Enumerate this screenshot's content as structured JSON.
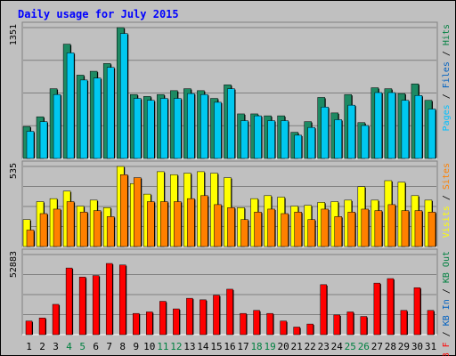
{
  "chart_data": {
    "title": "Daily usage for July 2015",
    "type": "bar",
    "days": [
      "1",
      "2",
      "3",
      "4",
      "5",
      "6",
      "7",
      "8",
      "9",
      "10",
      "11",
      "12",
      "13",
      "14",
      "15",
      "16",
      "17",
      "18",
      "19",
      "20",
      "21",
      "22",
      "23",
      "24",
      "25",
      "26",
      "27",
      "28",
      "29",
      "30",
      "31"
    ],
    "weekend_days": [
      "4",
      "5",
      "11",
      "12",
      "18",
      "19",
      "25",
      "26"
    ],
    "panels": [
      {
        "id": "hits",
        "max_label": "1351",
        "ymax": 1351,
        "legend": [
          {
            "text": "Pages",
            "color": "#00c0ff"
          },
          {
            "text": " / ",
            "color": "#000000"
          },
          {
            "text": "Files",
            "color": "#0060c0"
          },
          {
            "text": " / ",
            "color": "#000000"
          },
          {
            "text": "Hits",
            "color": "#008040"
          }
        ],
        "series": [
          {
            "name": "Hits",
            "color": "#1d8a63",
            "values": [
              330,
              430,
              720,
              1180,
              860,
              900,
              980,
              1351,
              660,
              640,
              660,
              700,
              720,
              700,
              620,
              760,
              460,
              460,
              440,
              440,
              270,
              380,
              630,
              470,
              660,
              370,
              730,
              720,
              670,
              770,
              600
            ]
          },
          {
            "name": "Pages",
            "color": "#00c8f0",
            "values": [
              280,
              380,
              660,
              1090,
              810,
              830,
              940,
              1290,
              620,
              600,
              620,
              620,
              670,
              660,
              580,
              720,
              390,
              440,
              390,
              390,
              240,
              320,
              530,
              400,
              550,
              340,
              680,
              680,
              600,
              650,
              510
            ]
          }
        ]
      },
      {
        "id": "visits",
        "max_label": "535",
        "ymax": 535,
        "legend": [
          {
            "text": "Visits",
            "color": "#ffff00"
          },
          {
            "text": " / ",
            "color": "#000000"
          },
          {
            "text": "Sites",
            "color": "#ff8000"
          }
        ],
        "series": [
          {
            "name": "Visits",
            "color": "#ffff00",
            "values": [
              180,
              300,
              320,
              370,
              270,
              310,
              260,
              535,
              420,
              350,
              500,
              480,
              490,
              500,
              490,
              460,
              260,
              320,
              340,
              330,
              270,
              275,
              295,
              300,
              310,
              400,
              310,
              440,
              430,
              340,
              310
            ]
          },
          {
            "name": "Sites",
            "color": "#ff8000",
            "values": [
              110,
              220,
              250,
              300,
              230,
              240,
              200,
              480,
              460,
              300,
              300,
              300,
              320,
              340,
              280,
              260,
              180,
              230,
              250,
              220,
              230,
              180,
              250,
              200,
              230,
              250,
              240,
              280,
              240,
              240,
              230
            ]
          }
        ]
      },
      {
        "id": "kbytes",
        "max_label": "52883",
        "ymax": 52883,
        "legend": [
          {
            "text": "KB F",
            "color": "#ff0000"
          },
          {
            "text": " / ",
            "color": "#000000"
          },
          {
            "text": "KB In",
            "color": "#0060c0"
          },
          {
            "text": " / ",
            "color": "#000000"
          },
          {
            "text": "KB Out",
            "color": "#008040"
          }
        ],
        "series": [
          {
            "name": "KB F",
            "color": "#ff0000",
            "values": [
              9000,
              11000,
              20000,
              44000,
              38000,
              39000,
              47000,
              46000,
              14000,
              15000,
              22000,
              17000,
              24000,
              23000,
              26000,
              30000,
              14000,
              16000,
              14000,
              9000,
              5000,
              7000,
              33000,
              13000,
              15000,
              12000,
              34000,
              37000,
              16000,
              31000,
              16000
            ]
          }
        ]
      }
    ]
  }
}
